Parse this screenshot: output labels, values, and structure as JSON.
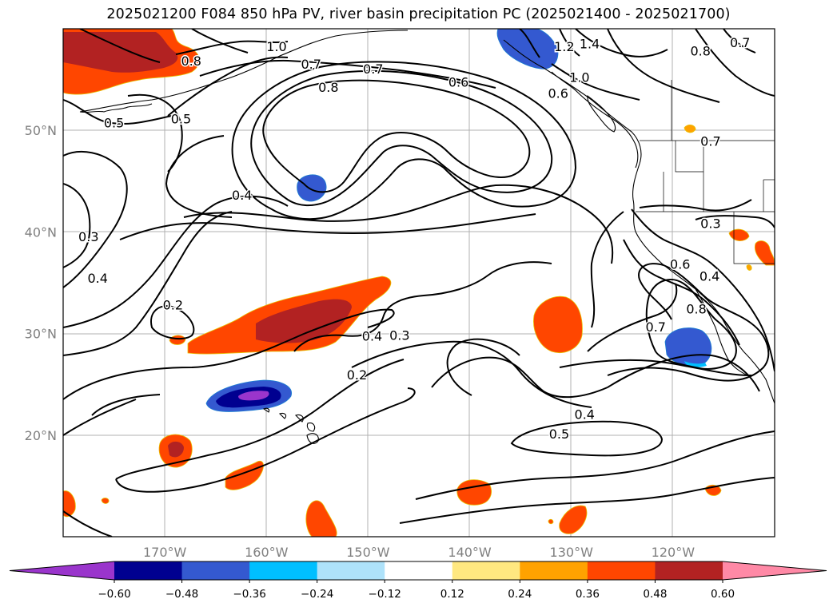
{
  "title": "2025021200 F084 850 hPa PV, river basin precipitation PC (2025021400 - 2025021700)",
  "map": {
    "lon_range": [
      -180,
      -110
    ],
    "lat_range": [
      10,
      60
    ],
    "lat_ticks": [
      {
        "value": 50,
        "label": "50°N"
      },
      {
        "value": 40,
        "label": "40°N"
      },
      {
        "value": 30,
        "label": "30°N"
      },
      {
        "value": 20,
        "label": "20°N"
      }
    ],
    "lon_ticks": [
      {
        "value": -170,
        "label": "170°W"
      },
      {
        "value": -160,
        "label": "160°W"
      },
      {
        "value": -150,
        "label": "150°W"
      },
      {
        "value": -140,
        "label": "140°W"
      },
      {
        "value": -130,
        "label": "130°W"
      },
      {
        "value": -120,
        "label": "120°W"
      }
    ],
    "contour_labels": [
      {
        "text": "1.0",
        "lon": -159,
        "lat": 58.1
      },
      {
        "text": "0.8",
        "lon": -167.4,
        "lat": 56.7
      },
      {
        "text": "0.7",
        "lon": -155.6,
        "lat": 56.4
      },
      {
        "text": "0.7",
        "lon": -149.5,
        "lat": 55.9
      },
      {
        "text": "0.8",
        "lon": -153.9,
        "lat": 54.1
      },
      {
        "text": "0.6",
        "lon": -141.1,
        "lat": 54.6
      },
      {
        "text": "0.5",
        "lon": -175,
        "lat": 50.6
      },
      {
        "text": "0.5",
        "lon": -168.4,
        "lat": 51.0
      },
      {
        "text": "1.2",
        "lon": -130.7,
        "lat": 58.1
      },
      {
        "text": "1.4",
        "lon": -128.2,
        "lat": 58.4
      },
      {
        "text": "1.0",
        "lon": -129.2,
        "lat": 55.1
      },
      {
        "text": "0.6",
        "lon": -131.3,
        "lat": 53.5
      },
      {
        "text": "0.8",
        "lon": -117.3,
        "lat": 57.7
      },
      {
        "text": "0.7",
        "lon": -113.4,
        "lat": 58.5
      },
      {
        "text": "0.4",
        "lon": -162.4,
        "lat": 43.5
      },
      {
        "text": "0.3",
        "lon": -177.5,
        "lat": 39.4
      },
      {
        "text": "0.4",
        "lon": -176.6,
        "lat": 35.3
      },
      {
        "text": "0.2",
        "lon": -169.2,
        "lat": 32.7
      },
      {
        "text": "0.4",
        "lon": -149.6,
        "lat": 29.6
      },
      {
        "text": "0.3",
        "lon": -146.9,
        "lat": 29.7
      },
      {
        "text": "0.2",
        "lon": -151.1,
        "lat": 25.8
      },
      {
        "text": "0.3",
        "lon": -116.3,
        "lat": 40.7
      },
      {
        "text": "0.6",
        "lon": -119.3,
        "lat": 36.7
      },
      {
        "text": "0.4",
        "lon": -116.4,
        "lat": 35.5
      },
      {
        "text": "0.8",
        "lon": -117.7,
        "lat": 32.3
      },
      {
        "text": "0.7",
        "lon": -121.7,
        "lat": 30.5
      },
      {
        "text": "0.7",
        "lon": -116.3,
        "lat": 48.8
      },
      {
        "text": "0.4",
        "lon": -128.7,
        "lat": 21.9
      },
      {
        "text": "0.5",
        "lon": -131.2,
        "lat": 20.0
      }
    ]
  },
  "colorbar": {
    "colors": [
      "#9a35cc",
      "#000090",
      "#3459d0",
      "#00bfff",
      "#aee2fa",
      "#ffffff",
      "#ffe880",
      "#ffa200",
      "#ff4600",
      "#b22222",
      "#ff89a6"
    ],
    "tick_labels": [
      "−0.60",
      "−0.48",
      "−0.36",
      "−0.24",
      "−0.12",
      "0.12",
      "0.24",
      "0.36",
      "0.48",
      "0.60"
    ]
  }
}
